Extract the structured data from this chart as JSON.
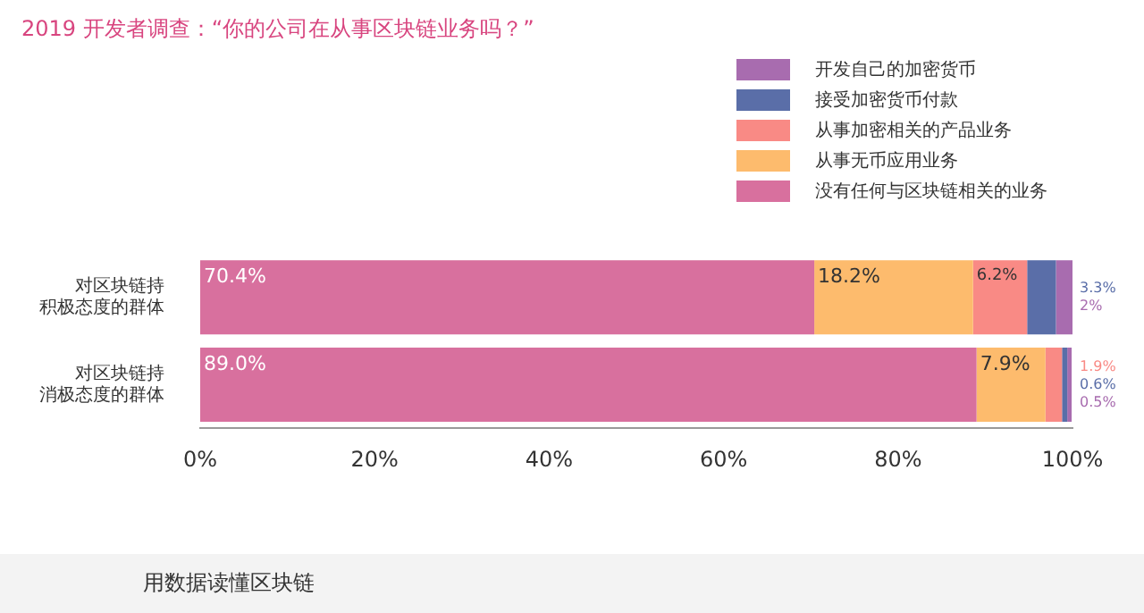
{
  "chart_data": {
    "type": "bar",
    "orientation": "horizontal",
    "stacked": true,
    "title": "2019 开发者调查：“你的公司在从事区块链业务吗？”",
    "categories": [
      "对区块链持积极态度的群体",
      "对区块链持消极态度的群体"
    ],
    "series": [
      {
        "name": "没有任何与区块链相关的业务",
        "color": "#d8709e",
        "values": [
          70.4,
          89.0
        ],
        "value_labels": [
          "70.4%",
          "89.0%"
        ]
      },
      {
        "name": "从事无币应用业务",
        "color": "#fdbb6d",
        "values": [
          18.2,
          7.9
        ],
        "value_labels": [
          "18.2%",
          "7.9%"
        ]
      },
      {
        "name": "从事加密相关的产品业务",
        "color": "#f98a85",
        "values": [
          6.2,
          1.9
        ],
        "value_labels": [
          "6.2%",
          "1.9%"
        ]
      },
      {
        "name": "接受加密货币付款",
        "color": "#5a6ea8",
        "values": [
          3.3,
          0.6
        ],
        "value_labels": [
          "3.3%",
          "0.6%"
        ]
      },
      {
        "name": "开发自己的加密货币",
        "color": "#a86caf",
        "values": [
          2,
          0.5
        ],
        "value_labels": [
          "2%",
          "0.5%"
        ]
      }
    ],
    "xlim": [
      0,
      100
    ],
    "xticks": [
      {
        "value": 0,
        "label": "0%"
      },
      {
        "value": 20,
        "label": "20%"
      },
      {
        "value": 40,
        "label": "40%"
      },
      {
        "value": 60,
        "label": "60%"
      },
      {
        "value": 80,
        "label": "80%"
      },
      {
        "value": 100,
        "label": "100%"
      }
    ],
    "grid": false,
    "legend": "top right",
    "annotations": [
      "用数据读懂区块链"
    ]
  }
}
